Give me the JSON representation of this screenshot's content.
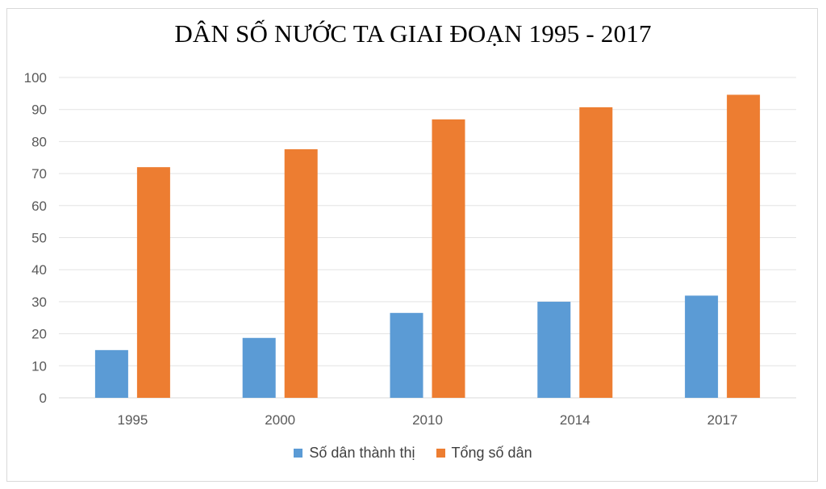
{
  "chart_data": {
    "type": "bar",
    "title": "DÂN SỐ NƯỚC TA GIAI ĐOẠN 1995 - 2017",
    "xlabel": "",
    "ylabel": "",
    "categories": [
      "1995",
      "2000",
      "2010",
      "2014",
      "2017"
    ],
    "series": [
      {
        "name": "Số dân thành thị",
        "color": "#5b9bd5",
        "values": [
          14.9,
          18.7,
          26.5,
          30.0,
          31.9
        ]
      },
      {
        "name": "Tổng số dân",
        "color": "#ed7d31",
        "values": [
          72.0,
          77.6,
          86.9,
          90.7,
          94.6
        ]
      }
    ],
    "ylim": [
      0,
      100
    ],
    "yticks": [
      "0",
      "10",
      "20",
      "30",
      "40",
      "50",
      "60",
      "70",
      "80",
      "90",
      "100"
    ],
    "grid": true,
    "legend_position": "bottom"
  }
}
